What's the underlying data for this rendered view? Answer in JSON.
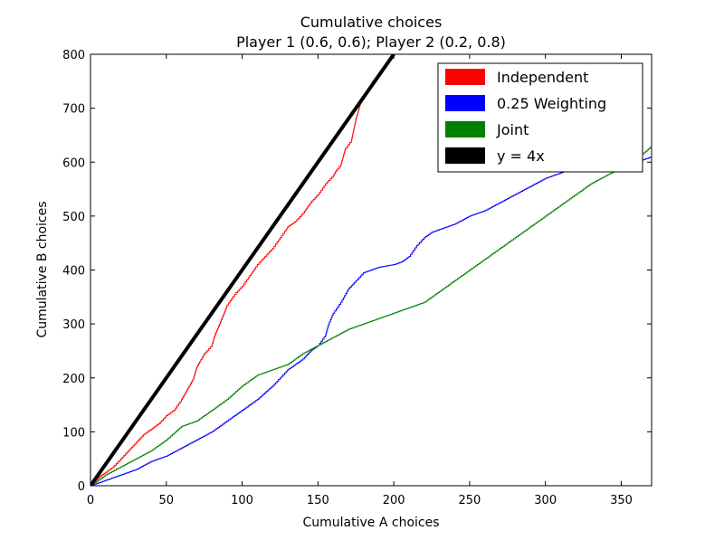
{
  "chart_data": {
    "type": "line",
    "title": "Cumulative choices",
    "subtitle": "Player 1 (0.6, 0.6); Player 2 (0.2, 0.8)",
    "xlabel": "Cumulative A choices",
    "ylabel": "Cumulative B choices",
    "xlim": [
      0,
      370
    ],
    "ylim": [
      0,
      800
    ],
    "xticks": [
      0,
      50,
      100,
      150,
      200,
      250,
      300,
      350
    ],
    "yticks": [
      0,
      100,
      200,
      300,
      400,
      500,
      600,
      700,
      800
    ],
    "legend_position": "top-right",
    "grid": false,
    "series": [
      {
        "name": "Independent",
        "color": "#ff0000",
        "style": "step",
        "points": [
          [
            0,
            0
          ],
          [
            5,
            15
          ],
          [
            10,
            25
          ],
          [
            15,
            35
          ],
          [
            20,
            50
          ],
          [
            25,
            65
          ],
          [
            30,
            80
          ],
          [
            35,
            95
          ],
          [
            40,
            105
          ],
          [
            45,
            115
          ],
          [
            50,
            130
          ],
          [
            55,
            140
          ],
          [
            60,
            160
          ],
          [
            62,
            170
          ],
          [
            65,
            185
          ],
          [
            68,
            200
          ],
          [
            70,
            220
          ],
          [
            72,
            230
          ],
          [
            75,
            245
          ],
          [
            80,
            260
          ],
          [
            82,
            280
          ],
          [
            85,
            300
          ],
          [
            88,
            320
          ],
          [
            90,
            335
          ],
          [
            95,
            355
          ],
          [
            100,
            370
          ],
          [
            105,
            390
          ],
          [
            110,
            410
          ],
          [
            115,
            425
          ],
          [
            120,
            440
          ],
          [
            125,
            460
          ],
          [
            130,
            480
          ],
          [
            135,
            490
          ],
          [
            140,
            505
          ],
          [
            145,
            525
          ],
          [
            150,
            540
          ],
          [
            155,
            560
          ],
          [
            160,
            575
          ],
          [
            162,
            585
          ],
          [
            165,
            595
          ],
          [
            168,
            625
          ],
          [
            172,
            640
          ],
          [
            175,
            680
          ],
          [
            178,
            710
          ],
          [
            182,
            730
          ],
          [
            186,
            750
          ],
          [
            190,
            765
          ],
          [
            195,
            785
          ],
          [
            200,
            800
          ]
        ]
      },
      {
        "name": "0.25 Weighting",
        "color": "#0000ff",
        "style": "step",
        "points": [
          [
            0,
            0
          ],
          [
            10,
            10
          ],
          [
            20,
            20
          ],
          [
            30,
            30
          ],
          [
            40,
            45
          ],
          [
            50,
            55
          ],
          [
            60,
            70
          ],
          [
            70,
            85
          ],
          [
            80,
            100
          ],
          [
            90,
            120
          ],
          [
            100,
            140
          ],
          [
            110,
            160
          ],
          [
            120,
            185
          ],
          [
            130,
            215
          ],
          [
            140,
            235
          ],
          [
            145,
            250
          ],
          [
            150,
            260
          ],
          [
            155,
            280
          ],
          [
            157,
            300
          ],
          [
            160,
            320
          ],
          [
            165,
            340
          ],
          [
            170,
            365
          ],
          [
            175,
            380
          ],
          [
            180,
            395
          ],
          [
            185,
            400
          ],
          [
            190,
            405
          ],
          [
            200,
            410
          ],
          [
            205,
            415
          ],
          [
            210,
            425
          ],
          [
            215,
            445
          ],
          [
            220,
            460
          ],
          [
            225,
            470
          ],
          [
            230,
            475
          ],
          [
            240,
            485
          ],
          [
            250,
            500
          ],
          [
            260,
            510
          ],
          [
            270,
            525
          ],
          [
            280,
            540
          ],
          [
            290,
            555
          ],
          [
            300,
            570
          ],
          [
            310,
            580
          ],
          [
            320,
            590
          ],
          [
            330,
            590
          ],
          [
            340,
            590
          ],
          [
            350,
            595
          ],
          [
            360,
            600
          ],
          [
            370,
            610
          ]
        ]
      },
      {
        "name": "Joint",
        "color": "#008000",
        "style": "step",
        "points": [
          [
            0,
            0
          ],
          [
            10,
            20
          ],
          [
            20,
            35
          ],
          [
            30,
            50
          ],
          [
            40,
            65
          ],
          [
            50,
            85
          ],
          [
            60,
            110
          ],
          [
            70,
            120
          ],
          [
            80,
            140
          ],
          [
            90,
            160
          ],
          [
            100,
            185
          ],
          [
            110,
            205
          ],
          [
            120,
            215
          ],
          [
            130,
            225
          ],
          [
            140,
            245
          ],
          [
            150,
            260
          ],
          [
            160,
            275
          ],
          [
            170,
            290
          ],
          [
            180,
            300
          ],
          [
            190,
            310
          ],
          [
            200,
            320
          ],
          [
            210,
            330
          ],
          [
            220,
            340
          ],
          [
            230,
            360
          ],
          [
            240,
            380
          ],
          [
            250,
            400
          ],
          [
            260,
            420
          ],
          [
            270,
            440
          ],
          [
            280,
            460
          ],
          [
            290,
            480
          ],
          [
            300,
            500
          ],
          [
            310,
            520
          ],
          [
            320,
            540
          ],
          [
            330,
            560
          ],
          [
            340,
            575
          ],
          [
            350,
            590
          ],
          [
            360,
            605
          ],
          [
            370,
            630
          ]
        ]
      },
      {
        "name": "y = 4x",
        "color": "#000000",
        "style": "line",
        "points": [
          [
            0,
            0
          ],
          [
            200,
            800
          ]
        ]
      }
    ]
  }
}
